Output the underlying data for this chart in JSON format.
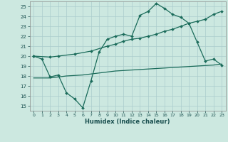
{
  "xlabel": "Humidex (Indice chaleur)",
  "bg_color": "#cce8e0",
  "grid_color": "#aacccc",
  "line_color": "#1a6b5a",
  "xlim": [
    -0.5,
    23.5
  ],
  "ylim": [
    14.5,
    25.5
  ],
  "xticks": [
    0,
    1,
    2,
    3,
    4,
    5,
    6,
    7,
    8,
    9,
    10,
    11,
    12,
    13,
    14,
    15,
    16,
    17,
    18,
    19,
    20,
    21,
    22,
    23
  ],
  "yticks": [
    15,
    16,
    17,
    18,
    19,
    20,
    21,
    22,
    23,
    24,
    25
  ],
  "series1_x": [
    0,
    1,
    2,
    3,
    4,
    5,
    6,
    7,
    8,
    9,
    10,
    11,
    12,
    13,
    14,
    15,
    16,
    17,
    18,
    19,
    20,
    21,
    22,
    23
  ],
  "series1_y": [
    20.0,
    19.7,
    17.9,
    18.1,
    16.3,
    15.7,
    14.8,
    17.5,
    20.4,
    21.7,
    22.0,
    22.2,
    22.0,
    24.1,
    24.5,
    25.3,
    24.8,
    24.2,
    23.9,
    23.3,
    21.4,
    19.5,
    19.7,
    19.1
  ],
  "series2_x": [
    0,
    2,
    3,
    5,
    7,
    9,
    10,
    11,
    12,
    13,
    14,
    15,
    16,
    17,
    18,
    19,
    20,
    21,
    22,
    23
  ],
  "series2_y": [
    20.0,
    19.9,
    20.0,
    20.2,
    20.5,
    21.0,
    21.2,
    21.5,
    21.7,
    21.8,
    22.0,
    22.2,
    22.5,
    22.7,
    23.0,
    23.3,
    23.5,
    23.7,
    24.2,
    24.5
  ],
  "series3_x": [
    0,
    2,
    4,
    6,
    8,
    10,
    12,
    14,
    16,
    18,
    20,
    22,
    23
  ],
  "series3_y": [
    17.8,
    17.8,
    18.0,
    18.1,
    18.3,
    18.5,
    18.6,
    18.7,
    18.8,
    18.9,
    19.0,
    19.1,
    19.2
  ]
}
